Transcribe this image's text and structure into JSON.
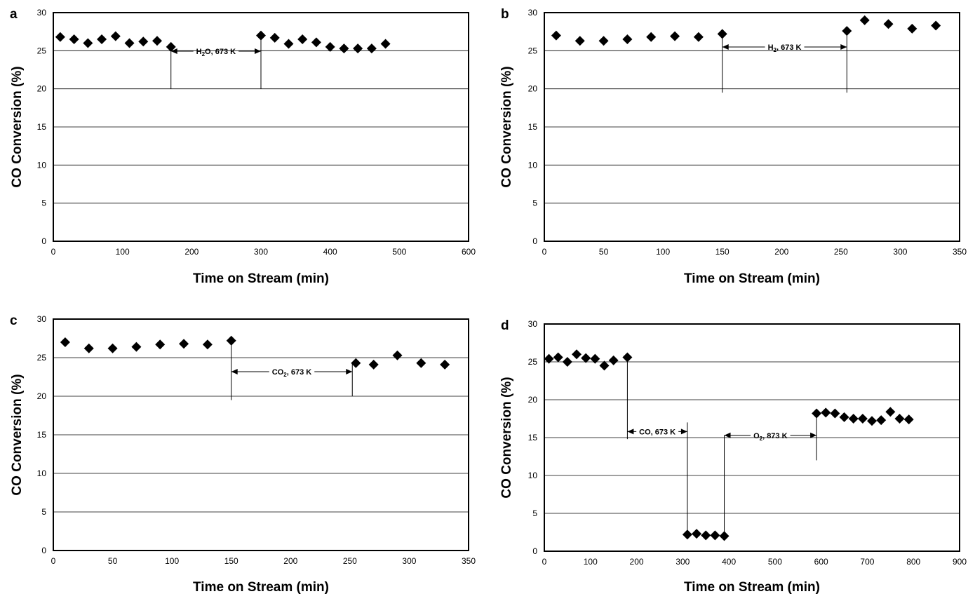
{
  "chart_data": [
    {
      "type": "scatter",
      "panel_label": "a",
      "xlabel": "Time on Stream (min)",
      "ylabel": "CO Conversion (%)",
      "xlim": [
        0,
        600
      ],
      "ylim": [
        0,
        30
      ],
      "x_ticks": [
        "0",
        "100",
        "200",
        "300",
        "400",
        "500",
        "600"
      ],
      "y_ticks": [
        "0",
        "5",
        "10",
        "15",
        "20",
        "25",
        "30"
      ],
      "grid": "horizontal",
      "x": [
        10,
        30,
        50,
        70,
        90,
        110,
        130,
        150,
        170,
        300,
        320,
        340,
        360,
        380,
        400,
        420,
        440,
        460,
        480
      ],
      "y": [
        26.8,
        26.5,
        26.0,
        26.5,
        26.9,
        26.0,
        26.2,
        26.3,
        25.5,
        27.0,
        26.7,
        25.9,
        26.5,
        26.1,
        25.5,
        25.3,
        25.3,
        25.3,
        25.9
      ],
      "annotations": [
        {
          "text_parts": [
            "H",
            "2",
            "O, 673 K"
          ],
          "x_start": 170,
          "x_end": 300
        }
      ]
    },
    {
      "type": "scatter",
      "panel_label": "b",
      "xlabel": "Time on Stream (min)",
      "ylabel": "CO Conversion (%)",
      "xlim": [
        0,
        350
      ],
      "ylim": [
        0,
        30
      ],
      "x_ticks": [
        "0",
        "50",
        "100",
        "150",
        "200",
        "250",
        "300",
        "350"
      ],
      "y_ticks": [
        "0",
        "5",
        "10",
        "15",
        "20",
        "25",
        "30"
      ],
      "grid": "horizontal",
      "x": [
        10,
        30,
        50,
        70,
        90,
        110,
        130,
        150,
        255,
        270,
        290,
        310,
        330
      ],
      "y": [
        27.0,
        26.3,
        26.3,
        26.5,
        26.8,
        26.9,
        26.8,
        27.2,
        27.6,
        29.0,
        28.5,
        27.9,
        28.3
      ],
      "annotations": [
        {
          "text_parts": [
            "H",
            "2",
            ", 673 K"
          ],
          "x_start": 150,
          "x_end": 255
        }
      ]
    },
    {
      "type": "scatter",
      "panel_label": "c",
      "xlabel": "Time on Stream (min)",
      "ylabel": "CO Conversion (%)",
      "xlim": [
        0,
        350
      ],
      "ylim": [
        0,
        30
      ],
      "x_ticks": [
        "0",
        "50",
        "100",
        "150",
        "200",
        "250",
        "300",
        "350"
      ],
      "y_ticks": [
        "0",
        "5",
        "10",
        "15",
        "20",
        "25",
        "30"
      ],
      "grid": "horizontal",
      "x": [
        10,
        30,
        50,
        70,
        90,
        110,
        130,
        150,
        255,
        270,
        290,
        310,
        330
      ],
      "y": [
        27.0,
        26.2,
        26.2,
        26.4,
        26.7,
        26.8,
        26.7,
        27.2,
        24.3,
        24.1,
        25.3,
        24.3,
        24.1
      ],
      "annotations": [
        {
          "text_parts": [
            "CO",
            "2",
            ", 673 K"
          ],
          "x_start": 150,
          "x_end": 252
        }
      ]
    },
    {
      "type": "scatter",
      "panel_label": "d",
      "xlabel": "Time on Stream (min)",
      "ylabel": "CO Conversion (%)",
      "xlim": [
        0,
        900
      ],
      "ylim": [
        0,
        30
      ],
      "x_ticks": [
        "0",
        "100",
        "200",
        "300",
        "400",
        "500",
        "600",
        "700",
        "800",
        "900"
      ],
      "y_ticks": [
        "0",
        "5",
        "10",
        "15",
        "20",
        "25",
        "30"
      ],
      "grid": "horizontal",
      "x": [
        10,
        30,
        50,
        70,
        90,
        110,
        130,
        150,
        180,
        310,
        330,
        350,
        370,
        390,
        590,
        610,
        630,
        650,
        670,
        690,
        710,
        730,
        750,
        770,
        790
      ],
      "y": [
        25.4,
        25.6,
        25.0,
        26.0,
        25.5,
        25.4,
        24.5,
        25.2,
        25.6,
        2.2,
        2.3,
        2.1,
        2.1,
        2.0,
        18.2,
        18.3,
        18.2,
        17.7,
        17.5,
        17.5,
        17.2,
        17.3,
        18.4,
        17.5,
        17.4
      ],
      "annotations": [
        {
          "text_parts": [
            "CO, 673 K"
          ],
          "x_start": 180,
          "x_end": 310
        },
        {
          "text_parts": [
            "O",
            "2",
            ", 873 K"
          ],
          "x_start": 390,
          "x_end": 590
        }
      ]
    }
  ]
}
